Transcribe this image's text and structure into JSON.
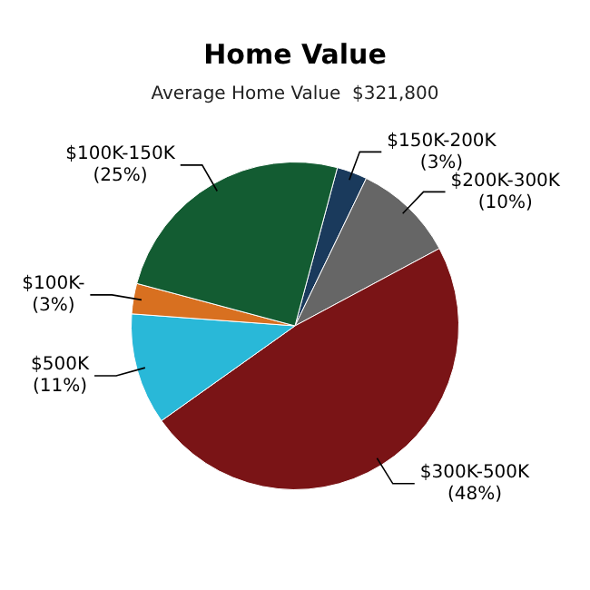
{
  "chart_data": {
    "type": "pie",
    "title": "Home Value",
    "subtitle": "Average Home Value  $321,800",
    "categories": [
      "$150K-200K",
      "$200K-300K",
      "$300K-500K",
      "$500K",
      "$100K-",
      "$100K-150K"
    ],
    "values": [
      3,
      10,
      48,
      11,
      3,
      25
    ],
    "value_labels": [
      "(3%)",
      "(10%)",
      "(48%)",
      "(11%)",
      "(3%)",
      "(25%)"
    ],
    "colors": [
      "#1a3a5c",
      "#666666",
      "#7a1416",
      "#29b8d8",
      "#d87020",
      "#135c32"
    ],
    "legend": false
  }
}
